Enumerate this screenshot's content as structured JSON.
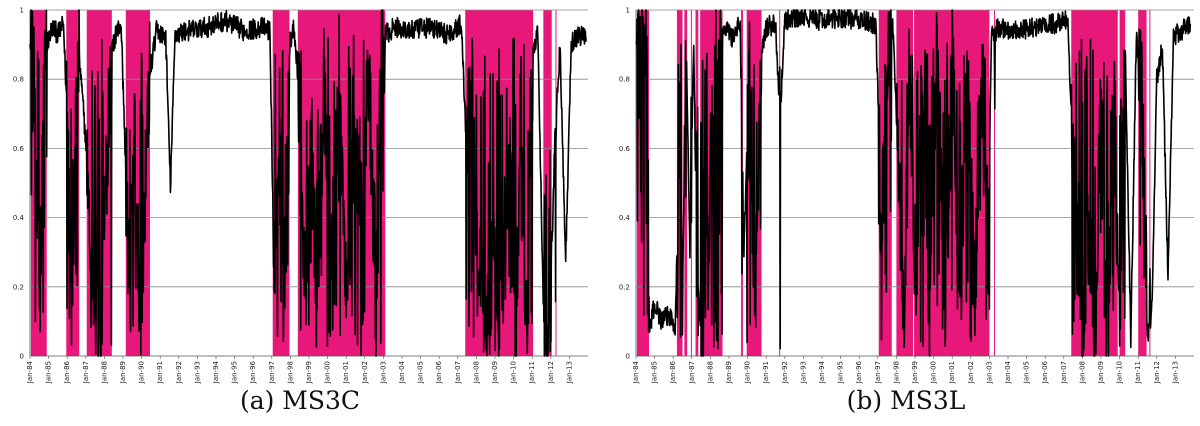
{
  "chart_data": [
    {
      "type": "line",
      "caption": "(a) MS3C",
      "ylim": [
        0,
        1
      ],
      "yticks": [
        0,
        0.2,
        0.4,
        0.6,
        0.8,
        1
      ],
      "ytick_labels": [
        "0",
        "0.2",
        "0.4",
        "0.6",
        "0.8",
        "1"
      ],
      "grid": true,
      "x_categories": [
        "Jan-84",
        "Jan-85",
        "Jan-86",
        "Jan-87",
        "Jan-88",
        "Jan-89",
        "Jan-90",
        "Jan-91",
        "Jan-92",
        "Jan-93",
        "Jan-94",
        "Jan-95",
        "Jan-96",
        "Jan-97",
        "Jan-98",
        "Jan-99",
        "Jan-00",
        "Jan-01",
        "Jan-02",
        "Jan-03",
        "Jan-04",
        "Jan-05",
        "Jan-06",
        "Jan-07",
        "Jan-08",
        "Jan-09",
        "Jan-10",
        "Jan-11",
        "Jan-12",
        "Jan-13"
      ],
      "xlim": [
        1984.0,
        2014.0
      ],
      "shaded_color": "#e8177a",
      "line_color": "#000000",
      "shaded_periods": [
        [
          1984.05,
          1984.9
        ],
        [
          1985.95,
          1986.65
        ],
        [
          1987.05,
          1988.4
        ],
        [
          1989.15,
          1990.45
        ],
        [
          1997.05,
          1997.95
        ],
        [
          1998.4,
          2003.1
        ],
        [
          2007.4,
          2011.05
        ],
        [
          2011.6,
          2012.05
        ],
        [
          2012.25,
          2012.3
        ]
      ],
      "series_profile": [
        {
          "x": 1984.0,
          "y": 0.93
        },
        {
          "x": 1984.25,
          "y": 0.75
        },
        {
          "x": 1984.45,
          "y": 0.35
        },
        {
          "x": 1984.55,
          "y": 0.09
        },
        {
          "x": 1984.75,
          "y": 0.78
        },
        {
          "x": 1984.9,
          "y": 0.9
        },
        {
          "x": 1985.2,
          "y": 0.95
        },
        {
          "x": 1985.5,
          "y": 0.93
        },
        {
          "x": 1985.8,
          "y": 0.96
        },
        {
          "x": 1986.1,
          "y": 0.55
        },
        {
          "x": 1986.25,
          "y": 0.2
        },
        {
          "x": 1986.45,
          "y": 0.6
        },
        {
          "x": 1986.6,
          "y": 0.9
        },
        {
          "x": 1987.1,
          "y": 0.55
        },
        {
          "x": 1987.3,
          "y": 0.3
        },
        {
          "x": 1987.55,
          "y": 0.15
        },
        {
          "x": 1987.8,
          "y": 0.08
        },
        {
          "x": 1988.05,
          "y": 0.45
        },
        {
          "x": 1988.3,
          "y": 0.85
        },
        {
          "x": 1988.6,
          "y": 0.93
        },
        {
          "x": 1988.9,
          "y": 0.96
        },
        {
          "x": 1989.2,
          "y": 0.45
        },
        {
          "x": 1989.35,
          "y": 0.09
        },
        {
          "x": 1989.6,
          "y": 0.7
        },
        {
          "x": 1989.9,
          "y": 0.13
        },
        {
          "x": 1990.15,
          "y": 0.3
        },
        {
          "x": 1990.4,
          "y": 0.8
        },
        {
          "x": 1990.8,
          "y": 0.94
        },
        {
          "x": 1991.3,
          "y": 0.92
        },
        {
          "x": 1991.55,
          "y": 0.49
        },
        {
          "x": 1991.8,
          "y": 0.93
        },
        {
          "x": 1992.5,
          "y": 0.94
        },
        {
          "x": 1993.5,
          "y": 0.95
        },
        {
          "x": 1994.5,
          "y": 0.97
        },
        {
          "x": 1995.5,
          "y": 0.94
        },
        {
          "x": 1996.5,
          "y": 0.95
        },
        {
          "x": 1996.9,
          "y": 0.94
        },
        {
          "x": 1997.15,
          "y": 0.12
        },
        {
          "x": 1997.4,
          "y": 0.6
        },
        {
          "x": 1997.7,
          "y": 0.18
        },
        {
          "x": 1997.95,
          "y": 0.9
        },
        {
          "x": 1998.2,
          "y": 0.95
        },
        {
          "x": 1998.5,
          "y": 0.75
        },
        {
          "x": 1998.8,
          "y": 0.15
        },
        {
          "x": 1999.1,
          "y": 0.9
        },
        {
          "x": 1999.4,
          "y": 0.08
        },
        {
          "x": 1999.8,
          "y": 0.85
        },
        {
          "x": 2000.2,
          "y": 0.1
        },
        {
          "x": 2000.6,
          "y": 0.88
        },
        {
          "x": 2001.0,
          "y": 0.15
        },
        {
          "x": 2001.4,
          "y": 0.9
        },
        {
          "x": 2001.8,
          "y": 0.12
        },
        {
          "x": 2002.2,
          "y": 0.87
        },
        {
          "x": 2002.6,
          "y": 0.1
        },
        {
          "x": 2002.9,
          "y": 0.85
        },
        {
          "x": 2003.1,
          "y": 0.93
        },
        {
          "x": 2003.6,
          "y": 0.95
        },
        {
          "x": 2004.5,
          "y": 0.94
        },
        {
          "x": 2005.5,
          "y": 0.95
        },
        {
          "x": 2006.5,
          "y": 0.93
        },
        {
          "x": 2007.2,
          "y": 0.96
        },
        {
          "x": 2007.45,
          "y": 0.61
        },
        {
          "x": 2007.7,
          "y": 0.9
        },
        {
          "x": 2008.0,
          "y": 0.4
        },
        {
          "x": 2008.3,
          "y": 0.2
        },
        {
          "x": 2008.6,
          "y": 0.05
        },
        {
          "x": 2008.9,
          "y": 0.3
        },
        {
          "x": 2009.2,
          "y": 0.0
        },
        {
          "x": 2009.5,
          "y": 0.25
        },
        {
          "x": 2009.8,
          "y": 0.6
        },
        {
          "x": 2010.1,
          "y": 0.02
        },
        {
          "x": 2010.4,
          "y": 0.8
        },
        {
          "x": 2010.7,
          "y": 0.02
        },
        {
          "x": 2010.95,
          "y": 0.88
        },
        {
          "x": 2011.3,
          "y": 0.93
        },
        {
          "x": 2011.65,
          "y": 0.02
        },
        {
          "x": 2011.95,
          "y": 0.05
        },
        {
          "x": 2012.2,
          "y": 0.6
        },
        {
          "x": 2012.5,
          "y": 0.9
        },
        {
          "x": 2012.8,
          "y": 0.27
        },
        {
          "x": 2013.1,
          "y": 0.9
        },
        {
          "x": 2013.5,
          "y": 0.93
        },
        {
          "x": 2013.9,
          "y": 0.92
        }
      ]
    },
    {
      "type": "line",
      "caption": "(b) MS3L",
      "ylim": [
        0,
        1
      ],
      "yticks": [
        0,
        0.2,
        0.4,
        0.6,
        0.8,
        1
      ],
      "ytick_labels": [
        "0",
        "0.2",
        "0.4",
        "0.6",
        "0.8",
        "1"
      ],
      "grid": true,
      "x_categories": [
        "Jan-84",
        "Jan-85",
        "Jan-86",
        "Jan-87",
        "Jan-88",
        "Jan-89",
        "Jan-90",
        "Jan-91",
        "Jan-92",
        "Jan-93",
        "Jan-94",
        "Jan-95",
        "Jan-96",
        "Jan-97",
        "Jan-98",
        "Jan-99",
        "Jan-00",
        "Jan-01",
        "Jan-02",
        "Jan-03",
        "Jan-04",
        "Jan-05",
        "Jan-06",
        "Jan-07",
        "Jan-08",
        "Jan-09",
        "Jan-10",
        "Jan-11",
        "Jan-12",
        "Jan-13"
      ],
      "xlim": [
        1984.0,
        2014.0
      ],
      "shaded_color": "#e8177a",
      "line_color": "#000000",
      "shaded_periods": [
        [
          1984.05,
          1984.7
        ],
        [
          1986.2,
          1986.5
        ],
        [
          1986.6,
          1986.75
        ],
        [
          1986.95,
          1987.0
        ],
        [
          1987.2,
          1987.35
        ],
        [
          1987.45,
          1988.65
        ],
        [
          1989.65,
          1989.75
        ],
        [
          1989.95,
          1990.75
        ],
        [
          1991.7,
          1991.75
        ],
        [
          1997.05,
          1997.75
        ],
        [
          1998.0,
          1998.9
        ],
        [
          1998.95,
          2003.0
        ],
        [
          2003.25,
          2003.3
        ],
        [
          2007.4,
          2009.9
        ],
        [
          2010.0,
          2010.3
        ],
        [
          2011.0,
          2011.45
        ],
        [
          2011.6,
          2011.65
        ]
      ],
      "series_profile": [
        {
          "x": 1984.0,
          "y": 0.92
        },
        {
          "x": 1984.2,
          "y": 0.8
        },
        {
          "x": 1984.4,
          "y": 0.97
        },
        {
          "x": 1984.6,
          "y": 0.96
        },
        {
          "x": 1984.7,
          "y": 0.07
        },
        {
          "x": 1985.0,
          "y": 0.15
        },
        {
          "x": 1985.4,
          "y": 0.1
        },
        {
          "x": 1985.8,
          "y": 0.12
        },
        {
          "x": 1986.1,
          "y": 0.09
        },
        {
          "x": 1986.3,
          "y": 0.45
        },
        {
          "x": 1986.5,
          "y": 0.2
        },
        {
          "x": 1986.7,
          "y": 0.9
        },
        {
          "x": 1986.9,
          "y": 0.3
        },
        {
          "x": 1987.1,
          "y": 0.9
        },
        {
          "x": 1987.3,
          "y": 0.2
        },
        {
          "x": 1987.6,
          "y": 0.02
        },
        {
          "x": 1987.9,
          "y": 0.3
        },
        {
          "x": 1988.2,
          "y": 0.85
        },
        {
          "x": 1988.5,
          "y": 0.9
        },
        {
          "x": 1988.8,
          "y": 0.95
        },
        {
          "x": 1989.2,
          "y": 0.92
        },
        {
          "x": 1989.6,
          "y": 0.96
        },
        {
          "x": 1989.8,
          "y": 0.3
        },
        {
          "x": 1990.1,
          "y": 0.85
        },
        {
          "x": 1990.4,
          "y": 0.1
        },
        {
          "x": 1990.7,
          "y": 0.88
        },
        {
          "x": 1991.0,
          "y": 0.95
        },
        {
          "x": 1991.5,
          "y": 0.96
        },
        {
          "x": 1991.75,
          "y": 0.7
        },
        {
          "x": 1992.0,
          "y": 0.97
        },
        {
          "x": 1993.0,
          "y": 0.98
        },
        {
          "x": 1994.0,
          "y": 0.97
        },
        {
          "x": 1995.0,
          "y": 0.98
        },
        {
          "x": 1996.0,
          "y": 0.97
        },
        {
          "x": 1996.9,
          "y": 0.96
        },
        {
          "x": 1997.2,
          "y": 0.35
        },
        {
          "x": 1997.5,
          "y": 0.9
        },
        {
          "x": 1997.8,
          "y": 0.96
        },
        {
          "x": 1998.1,
          "y": 0.6
        },
        {
          "x": 1998.4,
          "y": 0.1
        },
        {
          "x": 1998.7,
          "y": 0.85
        },
        {
          "x": 1999.0,
          "y": 0.12
        },
        {
          "x": 1999.4,
          "y": 0.88
        },
        {
          "x": 1999.8,
          "y": 0.08
        },
        {
          "x": 2000.2,
          "y": 0.9
        },
        {
          "x": 2000.6,
          "y": 0.12
        },
        {
          "x": 2001.0,
          "y": 0.88
        },
        {
          "x": 2001.4,
          "y": 0.1
        },
        {
          "x": 2001.8,
          "y": 0.85
        },
        {
          "x": 2002.2,
          "y": 0.12
        },
        {
          "x": 2002.6,
          "y": 0.86
        },
        {
          "x": 2002.9,
          "y": 0.15
        },
        {
          "x": 2003.1,
          "y": 0.92
        },
        {
          "x": 2003.5,
          "y": 0.95
        },
        {
          "x": 2004.5,
          "y": 0.94
        },
        {
          "x": 2005.5,
          "y": 0.95
        },
        {
          "x": 2006.5,
          "y": 0.96
        },
        {
          "x": 2007.2,
          "y": 0.97
        },
        {
          "x": 2007.5,
          "y": 0.6
        },
        {
          "x": 2007.8,
          "y": 0.25
        },
        {
          "x": 2008.1,
          "y": 0.05
        },
        {
          "x": 2008.4,
          "y": 0.3
        },
        {
          "x": 2008.7,
          "y": 0.0
        },
        {
          "x": 2009.0,
          "y": 0.85
        },
        {
          "x": 2009.3,
          "y": 0.05
        },
        {
          "x": 2009.7,
          "y": 0.55
        },
        {
          "x": 2010.0,
          "y": 0.15
        },
        {
          "x": 2010.3,
          "y": 0.9
        },
        {
          "x": 2010.6,
          "y": 0.05
        },
        {
          "x": 2010.9,
          "y": 0.92
        },
        {
          "x": 2011.2,
          "y": 0.75
        },
        {
          "x": 2011.5,
          "y": 0.04
        },
        {
          "x": 2011.75,
          "y": 0.15
        },
        {
          "x": 2012.0,
          "y": 0.8
        },
        {
          "x": 2012.3,
          "y": 0.9
        },
        {
          "x": 2012.6,
          "y": 0.23
        },
        {
          "x": 2012.9,
          "y": 0.92
        },
        {
          "x": 2013.3,
          "y": 0.94
        },
        {
          "x": 2013.8,
          "y": 0.96
        }
      ]
    }
  ]
}
